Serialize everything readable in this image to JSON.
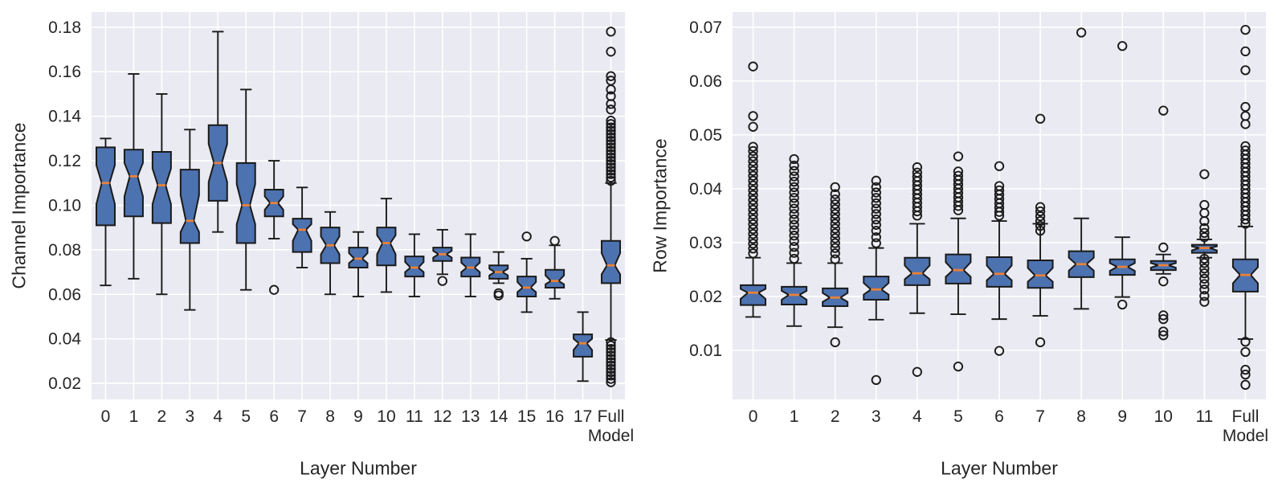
{
  "colors": {
    "figure_background": "#ffffff",
    "panel_background": "#eaeaf2",
    "grid": "#ffffff",
    "box_fill": "#4c72b0",
    "box_edge": "#1a1a1a",
    "median": "#e8813a",
    "outlier": "#1a1a1a",
    "text": "#262626"
  },
  "chart_data": [
    {
      "type": "box",
      "title": "",
      "xlabel": "Layer Number",
      "ylabel": "Channel Importance",
      "legend": "none",
      "grid": "on",
      "categories": [
        "0",
        "1",
        "2",
        "3",
        "4",
        "5",
        "6",
        "7",
        "8",
        "9",
        "10",
        "11",
        "12",
        "13",
        "14",
        "15",
        "16",
        "17",
        "Full Model"
      ],
      "yticks": [
        0.02,
        0.04,
        0.06,
        0.08,
        0.1,
        0.12,
        0.14,
        0.16,
        0.18
      ],
      "ylim": [
        0.0128,
        0.1868
      ],
      "boxes": [
        {
          "whislo": 0.064,
          "q1": 0.091,
          "med": 0.11,
          "q3": 0.126,
          "whishi": 0.13,
          "outliers": []
        },
        {
          "whislo": 0.067,
          "q1": 0.095,
          "med": 0.113,
          "q3": 0.125,
          "whishi": 0.159,
          "outliers": []
        },
        {
          "whislo": 0.06,
          "q1": 0.092,
          "med": 0.109,
          "q3": 0.124,
          "whishi": 0.15,
          "outliers": []
        },
        {
          "whislo": 0.053,
          "q1": 0.083,
          "med": 0.093,
          "q3": 0.116,
          "whishi": 0.134,
          "outliers": []
        },
        {
          "whislo": 0.088,
          "q1": 0.102,
          "med": 0.119,
          "q3": 0.136,
          "whishi": 0.178,
          "outliers": []
        },
        {
          "whislo": 0.062,
          "q1": 0.083,
          "med": 0.1,
          "q3": 0.119,
          "whishi": 0.152,
          "outliers": []
        },
        {
          "whislo": 0.085,
          "q1": 0.095,
          "med": 0.101,
          "q3": 0.107,
          "whishi": 0.12,
          "outliers": [
            0.062
          ]
        },
        {
          "whislo": 0.072,
          "q1": 0.079,
          "med": 0.089,
          "q3": 0.094,
          "whishi": 0.108,
          "outliers": []
        },
        {
          "whislo": 0.06,
          "q1": 0.074,
          "med": 0.082,
          "q3": 0.09,
          "whishi": 0.097,
          "outliers": []
        },
        {
          "whislo": 0.059,
          "q1": 0.072,
          "med": 0.076,
          "q3": 0.081,
          "whishi": 0.088,
          "outliers": []
        },
        {
          "whislo": 0.061,
          "q1": 0.073,
          "med": 0.083,
          "q3": 0.09,
          "whishi": 0.103,
          "outliers": []
        },
        {
          "whislo": 0.059,
          "q1": 0.068,
          "med": 0.072,
          "q3": 0.077,
          "whishi": 0.087,
          "outliers": []
        },
        {
          "whislo": 0.069,
          "q1": 0.075,
          "med": 0.078,
          "q3": 0.081,
          "whishi": 0.089,
          "outliers": [
            0.066
          ]
        },
        {
          "whislo": 0.059,
          "q1": 0.068,
          "med": 0.072,
          "q3": 0.0765,
          "whishi": 0.087,
          "outliers": []
        },
        {
          "whislo": 0.065,
          "q1": 0.067,
          "med": 0.07,
          "q3": 0.073,
          "whishi": 0.079,
          "outliers": [
            0.0595,
            0.0605
          ]
        },
        {
          "whislo": 0.052,
          "q1": 0.059,
          "med": 0.063,
          "q3": 0.068,
          "whishi": 0.076,
          "outliers": [
            0.086
          ]
        },
        {
          "whislo": 0.058,
          "q1": 0.063,
          "med": 0.066,
          "q3": 0.071,
          "whishi": 0.082,
          "outliers": [
            0.084
          ]
        },
        {
          "whislo": 0.021,
          "q1": 0.032,
          "med": 0.038,
          "q3": 0.042,
          "whishi": 0.052,
          "outliers": []
        },
        {
          "whislo": 0.0395,
          "q1": 0.065,
          "med": 0.073,
          "q3": 0.084,
          "whishi": 0.11,
          "outliers": [
            0.111,
            0.1125,
            0.114,
            0.1155,
            0.117,
            0.1185,
            0.12,
            0.1215,
            0.123,
            0.1245,
            0.126,
            0.1275,
            0.129,
            0.1305,
            0.132,
            0.1335,
            0.135,
            0.1365,
            0.138,
            0.143,
            0.1455,
            0.149,
            0.152,
            0.156,
            0.158,
            0.169,
            0.178,
            0.0205,
            0.022,
            0.0235,
            0.025,
            0.0265,
            0.028,
            0.0295,
            0.031,
            0.0325,
            0.034,
            0.0355,
            0.037,
            0.0385
          ]
        }
      ]
    },
    {
      "type": "box",
      "title": "",
      "xlabel": "Layer Number",
      "ylabel": "Row Importance",
      "legend": "none",
      "grid": "on",
      "categories": [
        "0",
        "1",
        "2",
        "3",
        "4",
        "5",
        "6",
        "7",
        "8",
        "9",
        "10",
        "11",
        "Full Model"
      ],
      "yticks": [
        0.01,
        0.02,
        0.03,
        0.04,
        0.05,
        0.06,
        0.07
      ],
      "ylim": [
        0.0009,
        0.0728
      ],
      "boxes": [
        {
          "whislo": 0.0162,
          "q1": 0.0184,
          "med": 0.0207,
          "q3": 0.0221,
          "whishi": 0.0272,
          "outliers": [
            0.028,
            0.0289,
            0.0298,
            0.0307,
            0.0316,
            0.0325,
            0.0334,
            0.0343,
            0.0352,
            0.0361,
            0.037,
            0.0379,
            0.0388,
            0.0397,
            0.0406,
            0.0415,
            0.0424,
            0.0433,
            0.0442,
            0.0451,
            0.046,
            0.047,
            0.0478,
            0.0515,
            0.0535,
            0.0627
          ]
        },
        {
          "whislo": 0.0145,
          "q1": 0.0185,
          "med": 0.0203,
          "q3": 0.0218,
          "whishi": 0.0262,
          "outliers": [
            0.027,
            0.0281,
            0.0292,
            0.0303,
            0.0313,
            0.0323,
            0.0333,
            0.0343,
            0.0353,
            0.0363,
            0.0373,
            0.0383,
            0.0393,
            0.0403,
            0.0413,
            0.0423,
            0.0433,
            0.0443,
            0.0455
          ]
        },
        {
          "whislo": 0.0143,
          "q1": 0.0182,
          "med": 0.0198,
          "q3": 0.0215,
          "whishi": 0.0262,
          "outliers": [
            0.0115,
            0.0269,
            0.028,
            0.029,
            0.0299,
            0.0308,
            0.0317,
            0.0326,
            0.0335,
            0.0344,
            0.0353,
            0.0362,
            0.0371,
            0.038,
            0.039,
            0.0403
          ]
        },
        {
          "whislo": 0.0157,
          "q1": 0.0194,
          "med": 0.0213,
          "q3": 0.0237,
          "whishi": 0.029,
          "outliers": [
            0.0045,
            0.0299,
            0.031,
            0.0322,
            0.0333,
            0.0343,
            0.0353,
            0.0363,
            0.0373,
            0.0383,
            0.0393,
            0.0403,
            0.0415
          ]
        },
        {
          "whislo": 0.0169,
          "q1": 0.0221,
          "med": 0.0243,
          "q3": 0.0272,
          "whishi": 0.0335,
          "outliers": [
            0.006,
            0.035,
            0.0358,
            0.0366,
            0.0374,
            0.0382,
            0.039,
            0.0398,
            0.0406,
            0.0414,
            0.0422,
            0.043,
            0.044
          ]
        },
        {
          "whislo": 0.0167,
          "q1": 0.0224,
          "med": 0.0249,
          "q3": 0.0278,
          "whishi": 0.0345,
          "outliers": [
            0.007,
            0.036,
            0.0368,
            0.0376,
            0.0384,
            0.0392,
            0.04,
            0.0408,
            0.0416,
            0.0424,
            0.0432,
            0.046
          ]
        },
        {
          "whislo": 0.0158,
          "q1": 0.0218,
          "med": 0.0242,
          "q3": 0.0273,
          "whishi": 0.034,
          "outliers": [
            0.0099,
            0.035,
            0.0357,
            0.0365,
            0.0373,
            0.0381,
            0.0389,
            0.0397,
            0.0405,
            0.0442
          ]
        },
        {
          "whislo": 0.0164,
          "q1": 0.0216,
          "med": 0.0239,
          "q3": 0.0267,
          "whishi": 0.0335,
          "outliers": [
            0.0115,
            0.0322,
            0.0331,
            0.034,
            0.0349,
            0.0358,
            0.0366,
            0.053
          ]
        },
        {
          "whislo": 0.0177,
          "q1": 0.0236,
          "med": 0.026,
          "q3": 0.0284,
          "whishi": 0.0345,
          "outliers": [
            0.069
          ]
        },
        {
          "whislo": 0.0199,
          "q1": 0.024,
          "med": 0.0255,
          "q3": 0.0269,
          "whishi": 0.031,
          "outliers": [
            0.0185,
            0.0665
          ]
        },
        {
          "whislo": 0.0242,
          "q1": 0.0249,
          "med": 0.0258,
          "q3": 0.0266,
          "whishi": 0.0278,
          "outliers": [
            0.0291,
            0.0545,
            0.0228,
            0.0165,
            0.0158,
            0.0135,
            0.0128
          ]
        },
        {
          "whislo": 0.0272,
          "q1": 0.0281,
          "med": 0.029,
          "q3": 0.0296,
          "whishi": 0.0306,
          "outliers": [
            0.031,
            0.0318,
            0.0327,
            0.034,
            0.0355,
            0.037,
            0.0427,
            0.027,
            0.0262,
            0.0252,
            0.0243,
            0.0233,
            0.0223,
            0.0213,
            0.0201,
            0.019
          ]
        },
        {
          "whislo": 0.0121,
          "q1": 0.0209,
          "med": 0.024,
          "q3": 0.0269,
          "whishi": 0.033,
          "outliers": [
            0.0335,
            0.0343,
            0.0351,
            0.0359,
            0.0367,
            0.0375,
            0.0383,
            0.0391,
            0.0399,
            0.0407,
            0.0415,
            0.0423,
            0.0431,
            0.0439,
            0.0447,
            0.0455,
            0.0463,
            0.0471,
            0.0479,
            0.052,
            0.0535,
            0.0552,
            0.062,
            0.0655,
            0.0695,
            0.0116,
            0.0097,
            0.0064,
            0.0055,
            0.0036
          ]
        }
      ]
    }
  ]
}
